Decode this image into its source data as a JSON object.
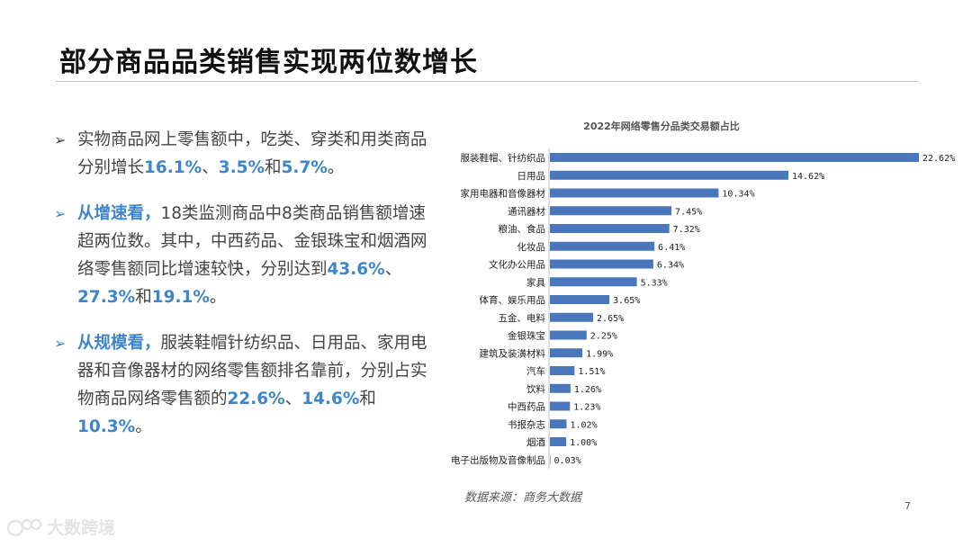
{
  "page": {
    "title": "部分商品品类销售实现两位数增长",
    "page_number": "7",
    "source_note": "数据来源：商务大数据",
    "watermark_text": "大数跨境"
  },
  "bullets": [
    {
      "arrow": "➢",
      "lead": "",
      "segments": [
        {
          "t": "实物商品网上零售额中，吃类、穿类和用类商品分别增长",
          "hl": false
        },
        {
          "t": "16.1%",
          "hl": true
        },
        {
          "t": "、",
          "hl": false
        },
        {
          "t": "3.5%",
          "hl": true
        },
        {
          "t": "和",
          "hl": false
        },
        {
          "t": "5.7%",
          "hl": true
        },
        {
          "t": "。",
          "hl": false
        }
      ]
    },
    {
      "arrow": "➢",
      "lead": "从增速看，",
      "segments": [
        {
          "t": "18类监测商品中8类商品销售额增速超两位数。其中，中西药品、金银珠宝和烟酒网络零售额同比增速较快，分别达到",
          "hl": false
        },
        {
          "t": "43.6%",
          "hl": true
        },
        {
          "t": "、",
          "hl": false
        },
        {
          "t": "27.3%",
          "hl": true
        },
        {
          "t": "和",
          "hl": false
        },
        {
          "t": "19.1%",
          "hl": true
        },
        {
          "t": "。",
          "hl": false
        }
      ]
    },
    {
      "arrow": "➢",
      "lead": "从规模看，",
      "segments": [
        {
          "t": "服装鞋帽针纺织品、日用品、家用电器和音像器材的网络零售额排名靠前，分别占实物商品网络零售额的",
          "hl": false
        },
        {
          "t": "22.6%",
          "hl": true
        },
        {
          "t": "、",
          "hl": false
        },
        {
          "t": "14.6%",
          "hl": true
        },
        {
          "t": "和",
          "hl": false
        },
        {
          "t": "10.3%",
          "hl": true
        },
        {
          "t": "。",
          "hl": false
        }
      ]
    }
  ],
  "chart_data": {
    "type": "bar",
    "orientation": "horizontal",
    "title": "2022年网络零售分品类交易额占比",
    "categories": [
      "服装鞋帽、针纺织品",
      "日用品",
      "家用电器和音像器材",
      "通讯器材",
      "粮油、食品",
      "化妆品",
      "文化办公用品",
      "家具",
      "体育、娱乐用品",
      "五金、电料",
      "金银珠宝",
      "建筑及装潢材料",
      "汽车",
      "饮料",
      "中西药品",
      "书报杂志",
      "烟酒",
      "电子出版物及音像制品"
    ],
    "values": [
      22.62,
      14.62,
      10.34,
      7.45,
      7.32,
      6.41,
      6.34,
      5.33,
      3.65,
      2.65,
      2.25,
      1.99,
      1.51,
      1.26,
      1.23,
      1.02,
      1.0,
      0.03
    ],
    "data_labels": [
      "22.62%",
      "14.62%",
      "10.34%",
      "7.45%",
      "7.32%",
      "6.41%",
      "6.34%",
      "5.33%",
      "3.65%",
      "2.65%",
      "2.25%",
      "1.99%",
      "1.51%",
      "1.26%",
      "1.23%",
      "1.02%",
      "1.00%",
      "0.03%"
    ],
    "xlim": [
      0,
      22.62
    ],
    "bar_color": "#4a77bb",
    "grid": false,
    "legend": "none"
  }
}
